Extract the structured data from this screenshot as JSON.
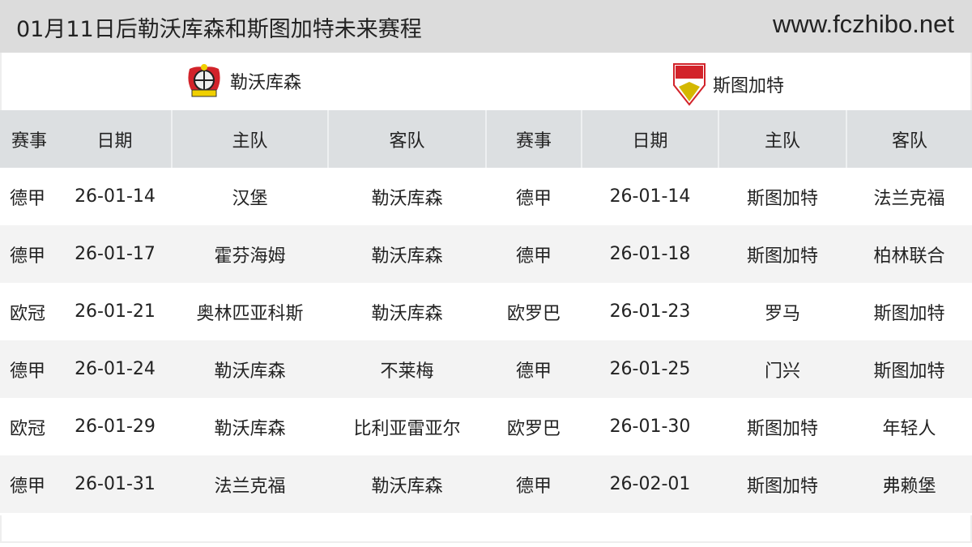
{
  "header": {
    "title": "01月11日后勒沃库森和斯图加特未来赛程",
    "site": "www.fczhibo.net"
  },
  "teams": {
    "left": {
      "name": "勒沃库森",
      "icon": "leverkusen-crest-icon"
    },
    "right": {
      "name": "斯图加特",
      "icon": "stuttgart-crest-icon"
    }
  },
  "columns": [
    "赛事",
    "日期",
    "主队",
    "客队",
    "赛事",
    "日期",
    "主队",
    "客队"
  ],
  "rows": [
    [
      "德甲",
      "26-01-14",
      "汉堡",
      "勒沃库森",
      "德甲",
      "26-01-14",
      "斯图加特",
      "法兰克福"
    ],
    [
      "德甲",
      "26-01-17",
      "霍芬海姆",
      "勒沃库森",
      "德甲",
      "26-01-18",
      "斯图加特",
      "柏林联合"
    ],
    [
      "欧冠",
      "26-01-21",
      "奥林匹亚科斯",
      "勒沃库森",
      "欧罗巴",
      "26-01-23",
      "罗马",
      "斯图加特"
    ],
    [
      "德甲",
      "26-01-24",
      "勒沃库森",
      "不莱梅",
      "德甲",
      "26-01-25",
      "门兴",
      "斯图加特"
    ],
    [
      "欧冠",
      "26-01-29",
      "勒沃库森",
      "比利亚雷亚尔",
      "欧罗巴",
      "26-01-30",
      "斯图加特",
      "年轻人"
    ],
    [
      "德甲",
      "26-01-31",
      "法兰克福",
      "勒沃库森",
      "德甲",
      "26-02-01",
      "斯图加特",
      "弗赖堡"
    ]
  ]
}
